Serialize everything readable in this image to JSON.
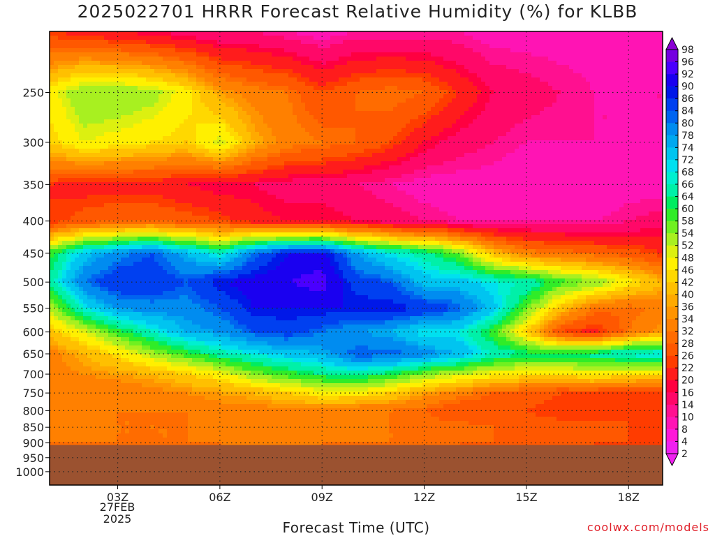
{
  "title": "2025022701 HRRR Forecast Relative Humidity (%) for KLBB",
  "xlabel": "Forecast Time (UTC)",
  "credit": "coolwx.com/models",
  "date_line1": "27FEB",
  "date_line2": "2025",
  "colors": {
    "ground": "#9b5230",
    "grid": "#222222",
    "frame": "#000000"
  },
  "chart_data": {
    "type": "heatmap",
    "title": "2025022701 HRRR Forecast Relative Humidity (%) for KLBB",
    "xlabel": "Forecast Time (UTC)",
    "ylabel": "",
    "x_ticks": [
      "03Z",
      "06Z",
      "09Z",
      "12Z",
      "15Z",
      "18Z"
    ],
    "x_tick_hours": [
      3,
      6,
      9,
      12,
      15,
      18
    ],
    "xlim": [
      1,
      19
    ],
    "y_ticks": [
      250,
      300,
      350,
      400,
      450,
      500,
      550,
      600,
      650,
      700,
      750,
      800,
      850,
      900,
      950,
      1000
    ],
    "y_scale": "log (pressure, hPa)",
    "ylim": [
      200,
      1050
    ],
    "surface_pressure_hPa": 907,
    "x_hours": [
      1,
      2,
      3,
      4,
      5,
      6,
      7,
      8,
      9,
      10,
      11,
      12,
      13,
      14,
      15,
      16,
      17,
      18,
      19
    ],
    "y_levels": [
      200,
      250,
      300,
      350,
      400,
      450,
      500,
      550,
      600,
      650,
      700,
      750,
      800,
      850,
      900
    ],
    "rh_grid": [
      [
        20,
        18,
        16,
        14,
        12,
        10,
        10,
        8,
        6,
        8,
        8,
        8,
        8,
        6,
        6,
        6,
        6,
        6,
        6
      ],
      [
        44,
        52,
        52,
        50,
        44,
        34,
        30,
        28,
        22,
        26,
        28,
        26,
        20,
        14,
        12,
        10,
        8,
        8,
        8
      ],
      [
        40,
        46,
        44,
        42,
        40,
        48,
        36,
        30,
        28,
        26,
        22,
        16,
        12,
        10,
        8,
        8,
        8,
        8,
        8
      ],
      [
        20,
        18,
        18,
        18,
        16,
        14,
        14,
        12,
        12,
        10,
        8,
        6,
        6,
        6,
        4,
        4,
        4,
        6,
        6
      ],
      [
        20,
        24,
        26,
        26,
        24,
        22,
        18,
        16,
        16,
        14,
        12,
        10,
        8,
        8,
        8,
        8,
        8,
        10,
        12
      ],
      [
        56,
        70,
        76,
        80,
        72,
        64,
        78,
        86,
        88,
        74,
        66,
        62,
        54,
        38,
        30,
        28,
        26,
        24,
        20
      ],
      [
        62,
        78,
        84,
        84,
        80,
        86,
        88,
        90,
        92,
        82,
        80,
        70,
        70,
        66,
        64,
        56,
        52,
        44,
        36
      ],
      [
        48,
        66,
        74,
        76,
        76,
        80,
        86,
        86,
        86,
        86,
        86,
        84,
        80,
        70,
        54,
        38,
        28,
        26,
        30
      ],
      [
        38,
        46,
        56,
        64,
        72,
        74,
        80,
        82,
        78,
        74,
        72,
        66,
        66,
        56,
        40,
        22,
        18,
        28,
        34
      ],
      [
        30,
        36,
        42,
        50,
        56,
        62,
        66,
        70,
        72,
        80,
        80,
        76,
        72,
        64,
        60,
        60,
        62,
        66,
        68
      ],
      [
        30,
        32,
        34,
        36,
        40,
        44,
        52,
        56,
        60,
        62,
        58,
        52,
        48,
        44,
        42,
        42,
        44,
        42,
        40
      ],
      [
        28,
        28,
        28,
        30,
        32,
        34,
        36,
        40,
        44,
        44,
        40,
        34,
        30,
        26,
        24,
        22,
        22,
        20,
        22
      ],
      [
        30,
        30,
        28,
        28,
        28,
        30,
        30,
        30,
        30,
        28,
        28,
        26,
        22,
        22,
        22,
        20,
        20,
        22,
        22
      ],
      [
        30,
        30,
        28,
        28,
        28,
        30,
        30,
        28,
        30,
        30,
        28,
        28,
        28,
        26,
        24,
        24,
        24,
        22,
        22
      ],
      [
        28,
        28,
        28,
        28,
        28,
        28,
        30,
        30,
        28,
        28,
        28,
        28,
        26,
        26,
        24,
        24,
        22,
        22,
        22
      ]
    ],
    "legend": {
      "labels": [
        "98",
        "96",
        "92",
        "90",
        "86",
        "84",
        "80",
        "78",
        "74",
        "72",
        "68",
        "66",
        "64",
        "60",
        "58",
        "54",
        "52",
        "48",
        "46",
        "42",
        "40",
        "36",
        "34",
        "32",
        "28",
        "26",
        "22",
        "20",
        "16",
        "14",
        "10",
        "8",
        "4",
        "2"
      ],
      "colors": [
        "#8a00d4",
        "#7400e0",
        "#4a00ff",
        "#1a00f0",
        "#0018e8",
        "#0040f0",
        "#0064f0",
        "#008cf0",
        "#00a8f0",
        "#00c4f0",
        "#00e0f0",
        "#00f0d0",
        "#00f0a8",
        "#00ec60",
        "#30ec28",
        "#70f020",
        "#a8f020",
        "#dcf010",
        "#fff000",
        "#ffd800",
        "#ffc000",
        "#ffaa00",
        "#ff9400",
        "#ff8000",
        "#ff6c00",
        "#ff5800",
        "#ff3c00",
        "#ff1c1c",
        "#ff0040",
        "#ff0868",
        "#ff1090",
        "#ff14b4",
        "#ff18d8",
        "#f020f0"
      ]
    }
  }
}
